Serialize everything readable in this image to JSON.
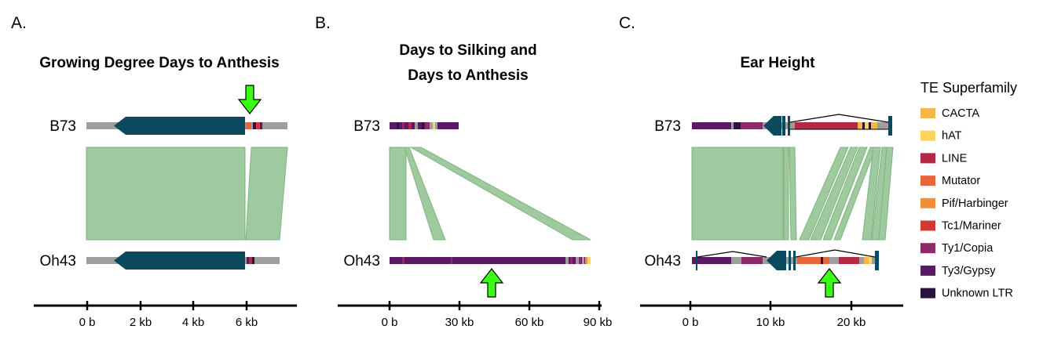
{
  "colors": {
    "backbone": "#9e9e9e",
    "gene": "#0b4a5e",
    "synteny": "#9fca9f",
    "synteny_stroke": "#7fb47f",
    "arrow": "#39ff14",
    "te": {
      "CACTA": "#f7b64b",
      "hAT": "#fdd35b",
      "LINE": "#b42a45",
      "Mutator": "#e7663a",
      "Pif/Harbinger": "#f38d38",
      "Tc1/Mariner": "#cf3b30",
      "Ty1/Copia": "#8c2a6a",
      "Ty3/Gypsy": "#5a1a63",
      "Unknown LTR": "#2b133f"
    }
  },
  "legend": {
    "title": "TE Superfamily",
    "items": [
      "CACTA",
      "hAT",
      "LINE",
      "Mutator",
      "Pif/Harbinger",
      "Tc1/Mariner",
      "Ty1/Copia",
      "Ty3/Gypsy",
      "Unknown LTR"
    ]
  },
  "panels": [
    {
      "letter": "A.",
      "title_lines": [
        "Growing Degree Days to Anthesis"
      ],
      "genomes": [
        "B73",
        "Oh43"
      ],
      "axis_ticks": [
        "0 b",
        "2 kb",
        "4 kb",
        "6 kb"
      ]
    },
    {
      "letter": "B.",
      "title_lines": [
        "Days to Silking and",
        "Days to Anthesis"
      ],
      "genomes": [
        "B73",
        "Oh43"
      ],
      "axis_ticks": [
        "0 b",
        "30 kb",
        "60 kb",
        "90 kb"
      ]
    },
    {
      "letter": "C.",
      "title_lines": [
        "Ear Height"
      ],
      "genomes": [
        "B73",
        "Oh43"
      ],
      "axis_ticks": [
        "0 b",
        "10 kb",
        "20 kb"
      ]
    }
  ]
}
